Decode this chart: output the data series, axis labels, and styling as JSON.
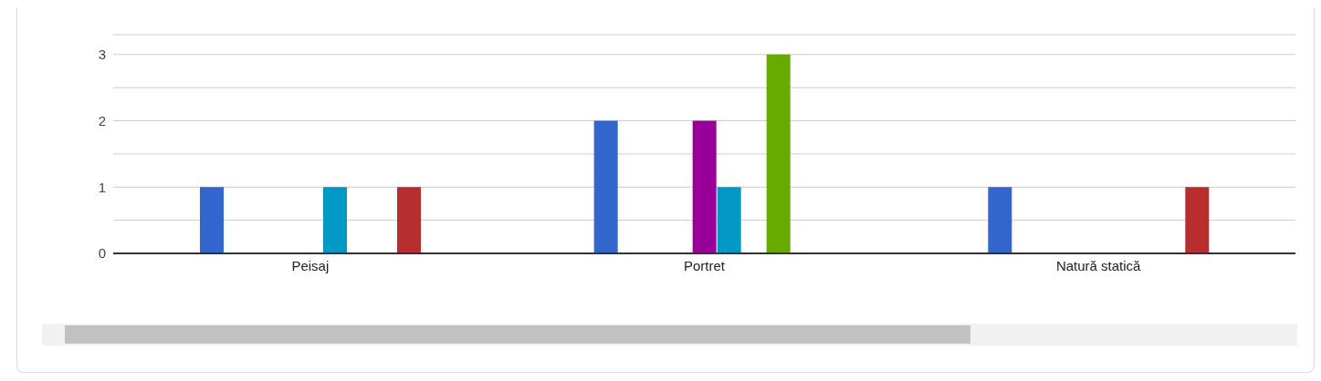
{
  "chart_data": {
    "type": "bar",
    "categories": [
      "Peisaj",
      "Portret",
      "Natură statică"
    ],
    "series": [
      {
        "color": "#3366cc",
        "values": [
          1,
          2,
          1
        ]
      },
      {
        "color": "#dc3912",
        "values": [
          0,
          0,
          0
        ]
      },
      {
        "color": "#ff9900",
        "values": [
          0,
          0,
          0
        ]
      },
      {
        "color": "#109618",
        "values": [
          0,
          0,
          0
        ]
      },
      {
        "color": "#990099",
        "values": [
          0,
          2,
          0
        ]
      },
      {
        "color": "#0099c6",
        "values": [
          1,
          1,
          0
        ]
      },
      {
        "color": "#dd4477",
        "values": [
          0,
          0,
          0
        ]
      },
      {
        "color": "#66aa00",
        "values": [
          0,
          3,
          0
        ]
      },
      {
        "color": "#b82e2e",
        "values": [
          1,
          0,
          1
        ]
      }
    ],
    "ylim": [
      0,
      3.3
    ],
    "yticks": [
      0,
      {
        "value": 0.5,
        "label": null
      },
      1,
      {
        "value": 1.5,
        "label": null
      },
      2,
      {
        "value": 2.5,
        "label": null
      },
      3
    ],
    "grid": "y"
  }
}
